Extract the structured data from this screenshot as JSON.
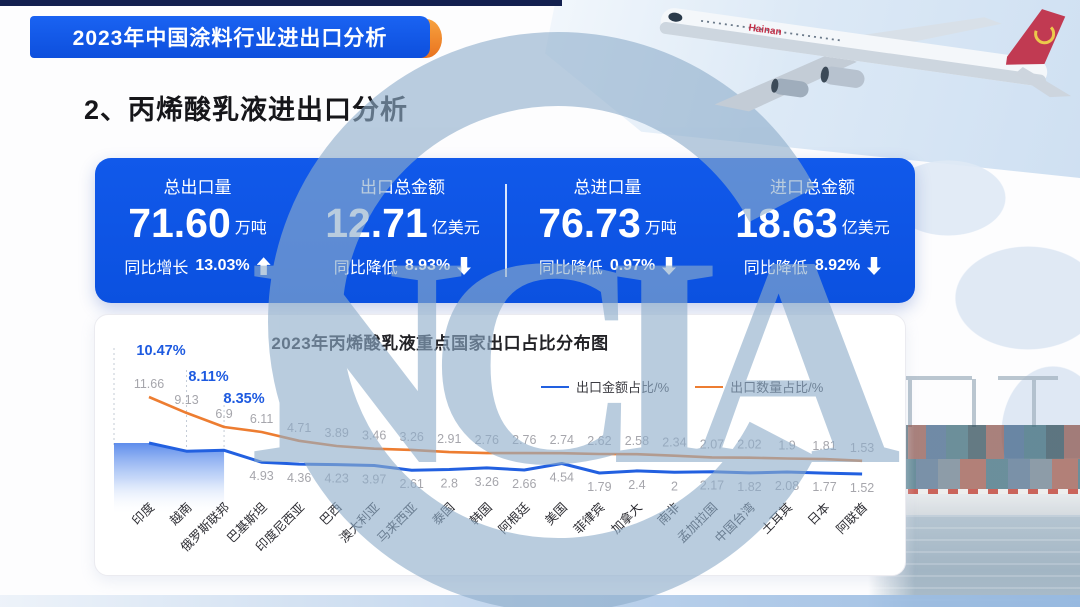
{
  "page": {
    "top_banner": "2023年中国涂料行业进出口分析",
    "section_title": "2、丙烯酸乳液进出口分析",
    "watermark": "NCIA",
    "airplane_label": "Hainan"
  },
  "colors": {
    "primary_blue": "#0F57E6",
    "banner_orange": "#ED7D31",
    "series_blue": "#2260E0",
    "series_orange": "#ED7D31",
    "watermark_blue": "#8FAECB",
    "highlight_label_blue": "#1D5AE0"
  },
  "stats": {
    "cards": [
      {
        "label": "总出口量",
        "value": "71.60",
        "unit": "万吨",
        "change_prefix": "同比增长",
        "change_value": "13.03%",
        "direction": "up"
      },
      {
        "label": "出口总金额",
        "value": "12.71",
        "unit": "亿美元",
        "change_prefix": "同比降低",
        "change_value": "8.93%",
        "direction": "down"
      },
      {
        "label": "总进口量",
        "value": "76.73",
        "unit": "万吨",
        "change_prefix": "同比降低",
        "change_value": "0.97%",
        "direction": "down"
      },
      {
        "label": "进口总金额",
        "value": "18.63",
        "unit": "亿美元",
        "change_prefix": "同比降低",
        "change_value": "8.92%",
        "direction": "down"
      }
    ]
  },
  "chart_data": {
    "type": "line",
    "title": "2023年丙烯酸乳液重点国家出口占比分布图",
    "categories": [
      "印度",
      "越南",
      "俄罗斯联邦",
      "巴基斯坦",
      "印度尼西亚",
      "巴西",
      "澳大利亚",
      "马来西亚",
      "泰国",
      "韩国",
      "阿根廷",
      "美国",
      "菲律宾",
      "加拿大",
      "南非",
      "孟加拉国",
      "中国台湾",
      "土耳其",
      "日本",
      "阿联酋"
    ],
    "series": [
      {
        "name": "出口金额占比/%",
        "color": "#2260E0",
        "values": [
          10.47,
          8.11,
          8.35,
          4.93,
          4.36,
          4.23,
          3.97,
          2.61,
          2.8,
          3.26,
          2.66,
          4.54,
          1.79,
          2.4,
          2,
          2.17,
          1.82,
          2.08,
          1.77,
          1.52
        ],
        "labels": [
          "10.47%",
          "8.11%",
          "8.35%",
          "4.93",
          "4.36",
          "4.23",
          "3.97",
          "2.61",
          "2.8",
          "3.26",
          "2.66",
          "4.54",
          "1.79",
          "2.4",
          "2",
          "2.17",
          "1.82",
          "2.08",
          "1.77",
          "1.52"
        ]
      },
      {
        "name": "出口数量占比/%",
        "color": "#ED7D31",
        "values": [
          11.66,
          9.13,
          6.9,
          6.11,
          4.71,
          3.89,
          3.46,
          3.26,
          2.91,
          2.76,
          2.76,
          2.74,
          2.62,
          2.58,
          2.34,
          2.07,
          2.02,
          1.9,
          1.81,
          1.53
        ],
        "labels": [
          "11.66",
          "9.13",
          "6.9",
          "6.11",
          "4.71",
          "3.89",
          "3.46",
          "3.26",
          "2.91",
          "2.76",
          "2.76",
          "2.74",
          "2.62",
          "2.58",
          "2.34",
          "2.07",
          "2.02",
          "1.9",
          "1.81",
          "1.53"
        ]
      }
    ],
    "highlighted_points": 3,
    "legend_position": "top-right",
    "grid": false,
    "x_axis_label_rotation": -45
  }
}
